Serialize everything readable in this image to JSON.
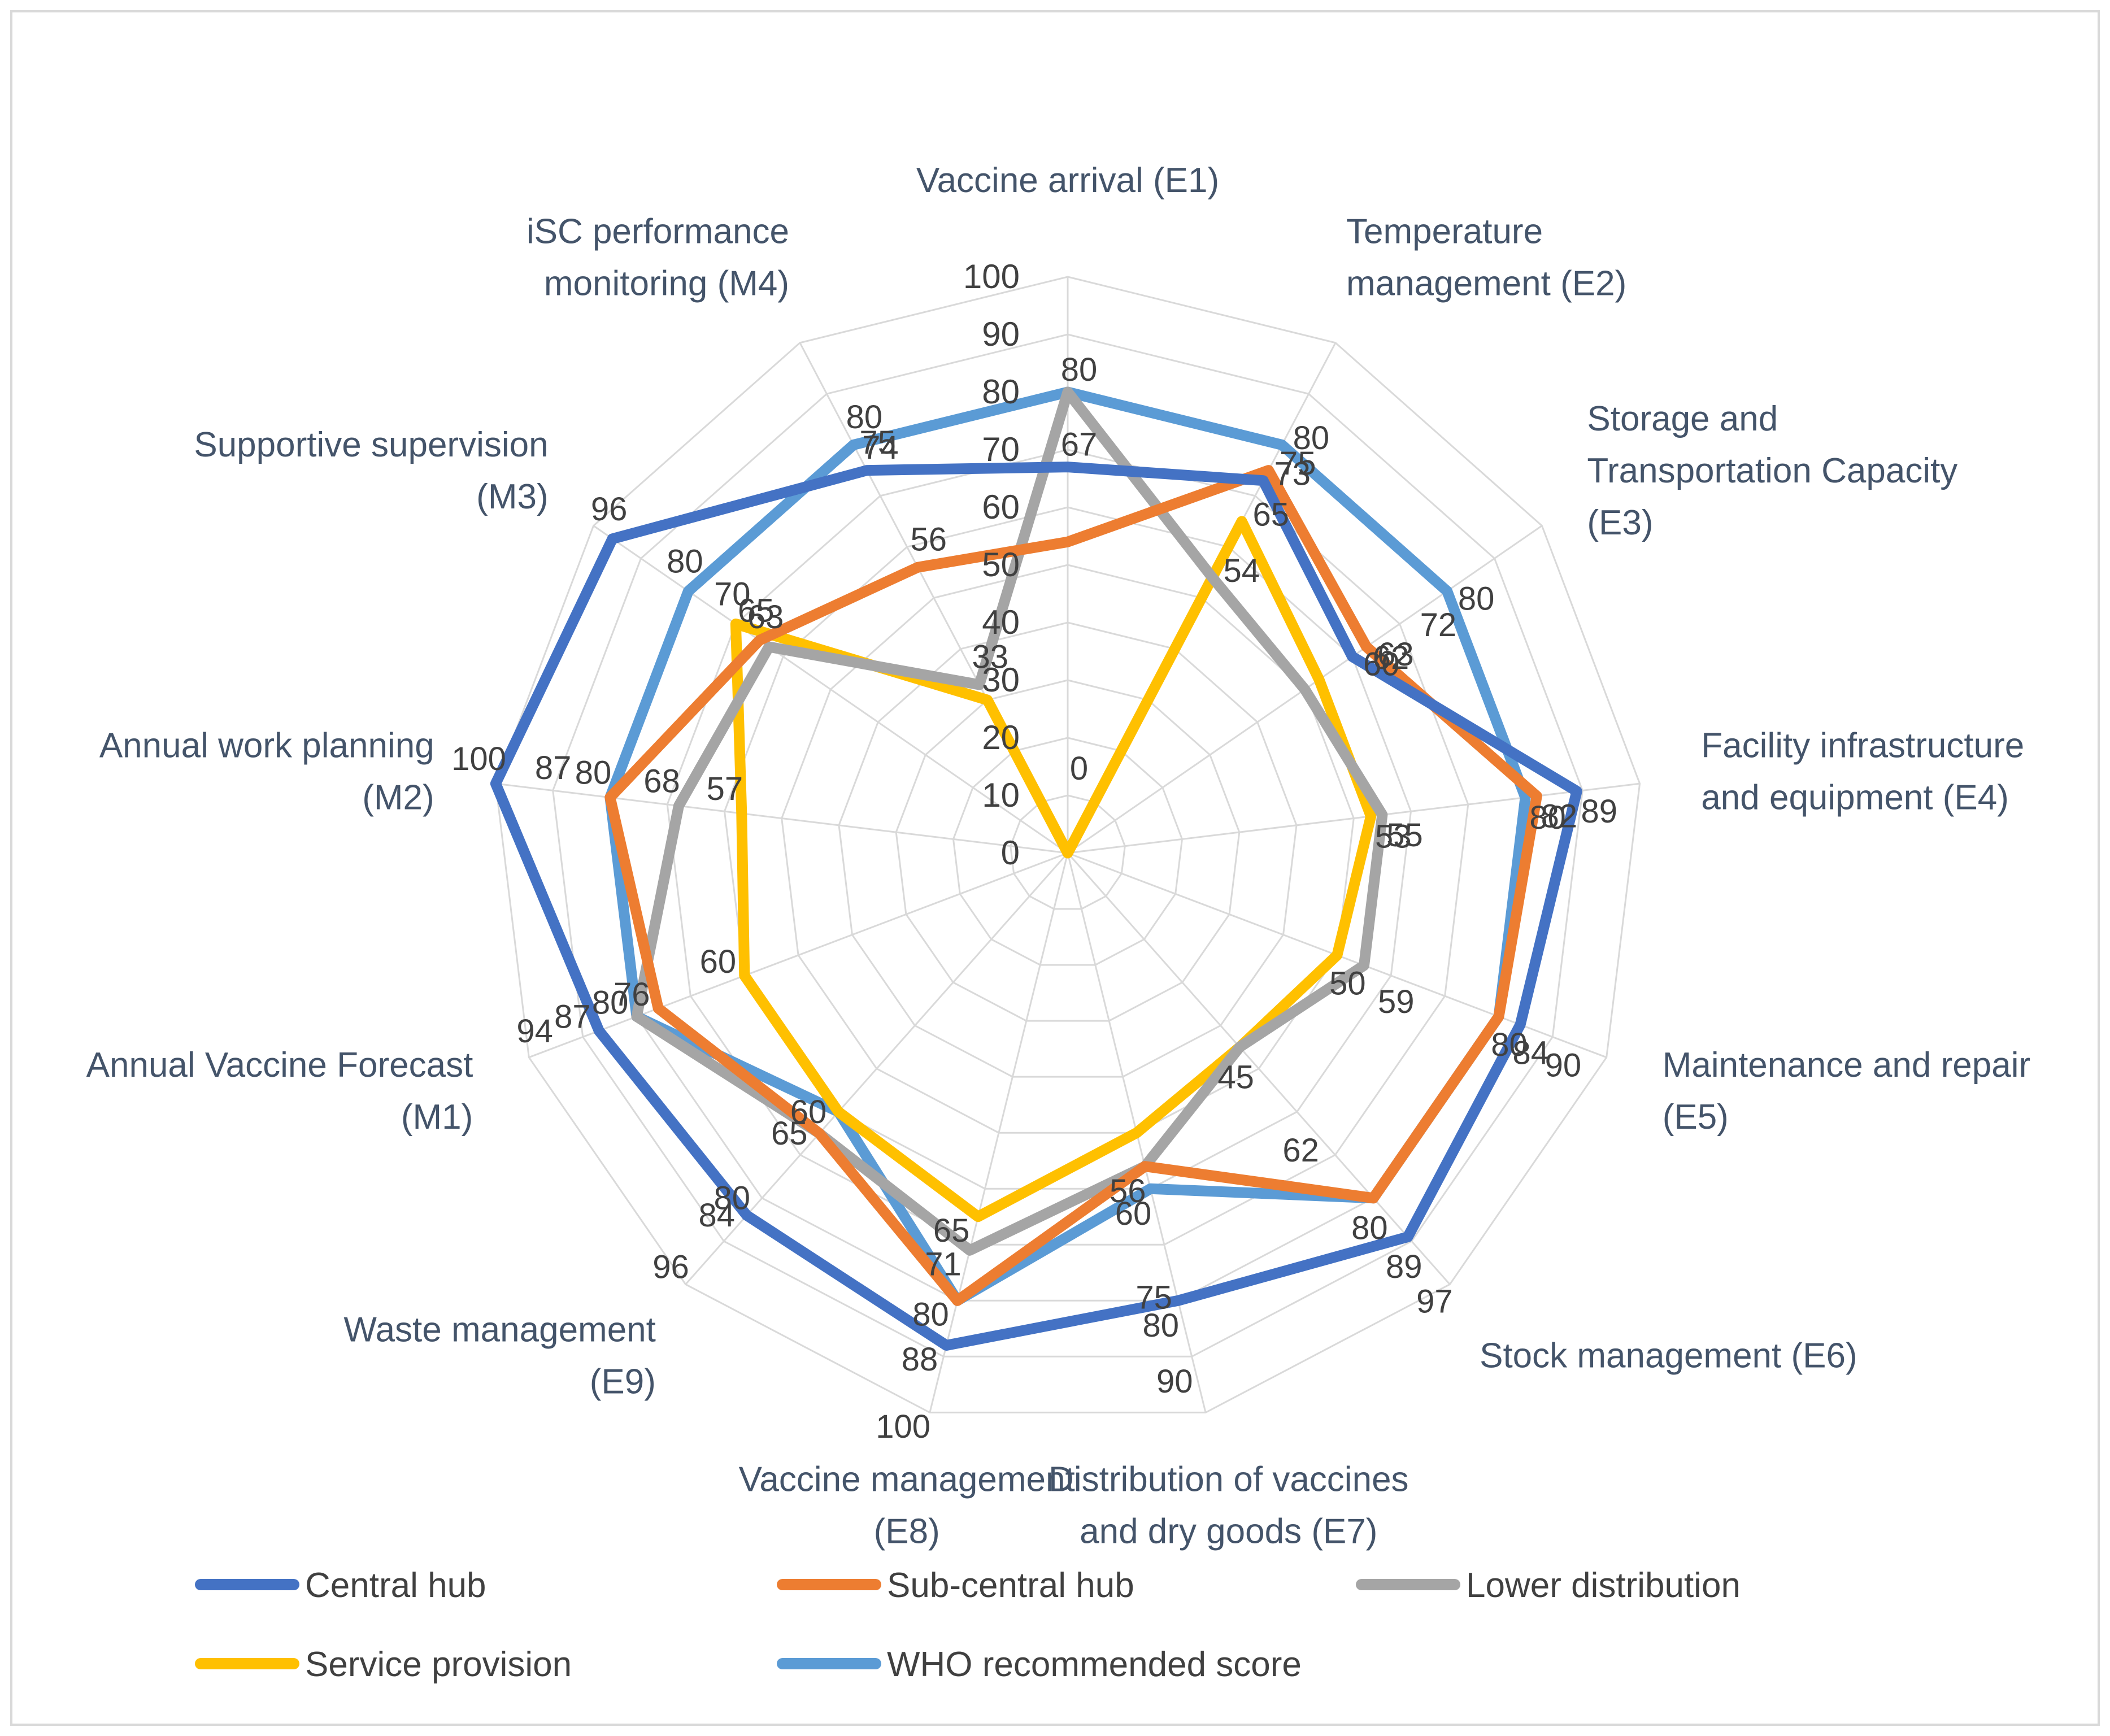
{
  "chart_data": {
    "type": "radar",
    "title": "",
    "axes": [
      "Vaccine arrival (E1)",
      "Temperature management (E2)",
      "Storage and Transportation Capacity (E3)",
      "Facility infrastructure and equipment (E4)",
      "Maintenance and repair (E5)",
      "Stock management (E6)",
      "Distribution of vaccines and dry goods (E7)",
      "Vaccine management (E8)",
      "Waste management (E9)",
      "Annual Vaccine Forecast (M1)",
      "Annual work planning (M2)",
      "Supportive supervision (M3)",
      "iSC performance monitoring (M4)"
    ],
    "rlim": [
      0,
      100
    ],
    "ticks": [
      0,
      10,
      20,
      30,
      40,
      50,
      60,
      70,
      80,
      90,
      100
    ],
    "series": [
      {
        "name": "Central hub",
        "color": "#4472C4",
        "values": [
          67,
          73,
          60,
          89,
          84,
          89,
          80,
          88,
          84,
          87,
          100,
          96,
          75
        ]
      },
      {
        "name": "Sub-central hub",
        "color": "#ED7D31",
        "values": [
          54,
          75,
          63,
          82,
          80,
          80,
          56,
          80,
          65,
          76,
          80,
          65,
          56
        ]
      },
      {
        "name": "Lower distribution",
        "color": "#A5A5A5",
        "values": [
          80,
          54,
          50,
          55,
          55,
          45,
          56,
          71,
          65,
          80,
          68,
          63,
          33
        ]
      },
      {
        "name": "Service provision",
        "color": "#FFC000",
        "values": [
          0,
          65,
          53,
          53,
          50,
          45,
          50,
          65,
          60,
          60,
          57,
          70,
          30
        ]
      },
      {
        "name": "WHO recommended score",
        "color": "#5B9BD5",
        "values": [
          80,
          80,
          80,
          80,
          80,
          80,
          60,
          80,
          60,
          80,
          80,
          80,
          80
        ]
      }
    ],
    "tick_label_column": [
      "100",
      "90",
      "80",
      "70",
      "60",
      "50",
      "40",
      "30",
      "20",
      "10",
      "0"
    ],
    "data_labels": [
      [
        "80",
        "67",
        "0"
      ],
      [
        "80",
        "75",
        "73",
        "65",
        "54"
      ],
      [
        "80",
        "72",
        "63",
        "62",
        "60"
      ],
      [
        "89",
        "82",
        "80",
        "55",
        "53"
      ],
      [
        "90",
        "84",
        "80",
        "59",
        "50"
      ],
      [
        "97",
        "89",
        "80",
        "62",
        "45"
      ],
      [
        "90",
        "80",
        "75",
        "60",
        "56"
      ],
      [
        "100",
        "88",
        "80",
        "71",
        "65"
      ],
      [
        "96",
        "84",
        "80",
        "65",
        "60"
      ],
      [
        "94",
        "87",
        "80",
        "76",
        "60"
      ],
      [
        "100",
        "87",
        "80",
        "68",
        "57"
      ],
      [
        "96",
        "80",
        "70",
        "65",
        "63"
      ],
      [
        "80",
        "75",
        "74",
        "56",
        "33"
      ]
    ]
  },
  "legend": [
    {
      "label": "Central hub",
      "color": "#4472C4"
    },
    {
      "label": "Sub-central hub",
      "color": "#ED7D31"
    },
    {
      "label": "Lower distribution",
      "color": "#A5A5A5"
    },
    {
      "label": "Service provision",
      "color": "#FFC000"
    },
    {
      "label": "WHO recommended score",
      "color": "#5B9BD5"
    }
  ]
}
